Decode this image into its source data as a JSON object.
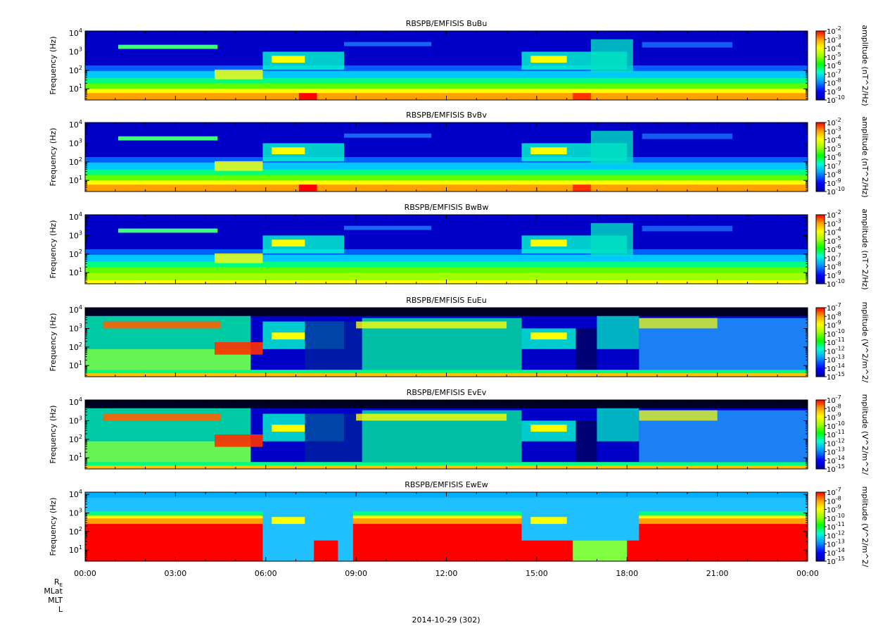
{
  "chart_data": {
    "type": "heatmap",
    "date_label": "2014-10-29 (302)",
    "x_tick_labels": [
      "00:00",
      "03:00",
      "06:00",
      "09:00",
      "12:00",
      "15:00",
      "18:00",
      "21:00",
      "00:00"
    ],
    "ephemeris_labels": [
      {
        "text": "R",
        "sub": "E"
      },
      {
        "text": "MLat",
        "sub": ""
      },
      {
        "text": "MLT",
        "sub": ""
      },
      {
        "text": "L",
        "sub": ""
      }
    ],
    "panels": [
      {
        "title": "RBSPB/EMFISIS  BuBu",
        "ylabel": "Frequency (Hz)",
        "zlabel": "amplitude (nT^2/Hz)",
        "zlim_exp": [
          -10,
          -2
        ],
        "kind": "B"
      },
      {
        "title": "RBSPB/EMFISIS  BvBv",
        "ylabel": "Frequency (Hz)",
        "zlabel": "amplitude (nT^2/Hz)",
        "zlim_exp": [
          -10,
          -2
        ],
        "kind": "B"
      },
      {
        "title": "RBSPB/EMFISIS  BwBw",
        "ylabel": "Frequency (Hz)",
        "zlabel": "amplitude (nT^2/Hz)",
        "zlim_exp": [
          -10,
          -2
        ],
        "kind": "Bw"
      },
      {
        "title": "RBSPB/EMFISIS  EuEu",
        "ylabel": "Frequency (Hz)",
        "zlabel": "mplitude (V^2/m^2/",
        "zlim_exp": [
          -15,
          -7
        ],
        "kind": "E"
      },
      {
        "title": "RBSPB/EMFISIS  EvEv",
        "ylabel": "Frequency (Hz)",
        "zlabel": "mplitude (V^2/m^2/",
        "zlim_exp": [
          -15,
          -7
        ],
        "kind": "E"
      },
      {
        "title": "RBSPB/EMFISIS  EwEw",
        "ylabel": "Frequency (Hz)",
        "zlabel": "mplitude (V^2/m^2/",
        "zlim_exp": [
          -15,
          -7
        ],
        "kind": "Ew"
      }
    ],
    "y_tick_exponents": [
      1,
      2,
      3,
      4
    ],
    "y_tick_base": "10",
    "y_scale": "log",
    "x_range_hours": [
      0,
      24
    ],
    "colormap": [
      "#0000a0",
      "#0000ff",
      "#00a0ff",
      "#00ffd0",
      "#00ff00",
      "#a0ff00",
      "#ffff00",
      "#ffa000",
      "#ff0000"
    ]
  }
}
